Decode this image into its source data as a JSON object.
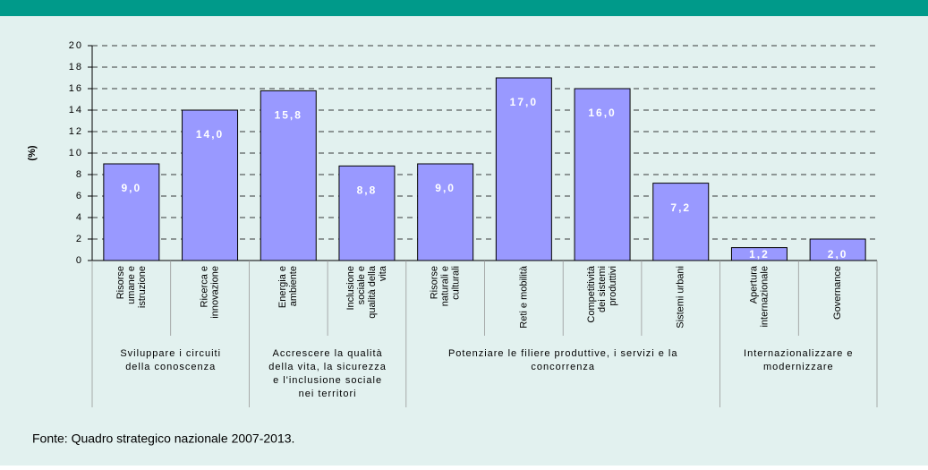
{
  "chart_data": {
    "type": "bar",
    "ylabel": "(%)",
    "categories": [
      [
        "Risorse",
        "umane e",
        "istruzione"
      ],
      [
        "Ricerca e",
        "innovazione"
      ],
      [
        "Energia e",
        "ambiente"
      ],
      [
        "Inclusione",
        "sociale e",
        "qualità della",
        "vita"
      ],
      [
        "Risorse",
        "naturali e",
        "culturali"
      ],
      [
        "Reti e  mobilità"
      ],
      [
        "Competitività",
        "dei sistemi",
        "produttivi"
      ],
      [
        "Sistemi urbani"
      ],
      [
        "Apertura",
        "internazionale"
      ],
      [
        "Governance"
      ]
    ],
    "values": [
      9.0,
      14.0,
      15.8,
      8.8,
      9.0,
      17.0,
      16.0,
      7.2,
      1.2,
      2.0
    ],
    "value_labels": [
      "9,0",
      "14,0",
      "15,8",
      "8,8",
      "9,0",
      "17,0",
      "16,0",
      "7,2",
      "1,2",
      "2,0"
    ],
    "groups": [
      {
        "label": [
          "Sviluppare i circuiti",
          "della conoscenza"
        ],
        "span": [
          0,
          1
        ]
      },
      {
        "label": [
          "Accrescere la qualità",
          "della vita, la sicurezza",
          "e l'inclusione sociale",
          "nei territori"
        ],
        "span": [
          2,
          3
        ]
      },
      {
        "label": [
          "Potenziare le filiere produttive, i servizi e la",
          "concorrenza"
        ],
        "span": [
          4,
          7
        ]
      },
      {
        "label": [
          "Internazionalizzare e",
          "modernizzare"
        ],
        "span": [
          8,
          9
        ]
      }
    ],
    "color": "#9999ff",
    "ylim": [
      0,
      20
    ],
    "yticks": [
      0,
      2,
      4,
      6,
      8,
      10,
      12,
      14,
      16,
      18,
      20
    ],
    "grid": true,
    "source": "Fonte: Quadro strategico nazionale 2007-2013."
  }
}
